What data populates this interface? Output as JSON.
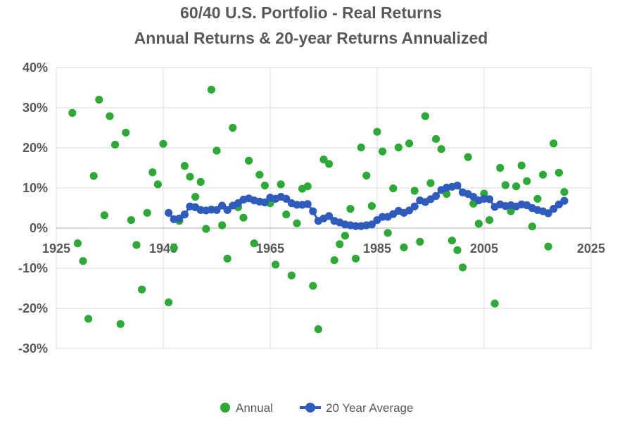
{
  "chart_data": {
    "type": "scatter",
    "title": "60/40 U.S. Portfolio - Real Returns",
    "subtitle": "Annual Returns & 20-year Returns Annualized",
    "xlabel": "",
    "ylabel": "",
    "xlim": [
      1925,
      2025
    ],
    "ylim": [
      -30,
      40
    ],
    "x_ticks": [
      "1925",
      "1945",
      "1965",
      "1985",
      "2005",
      "2025"
    ],
    "y_ticks": [
      "40%",
      "30%",
      "20%",
      "10%",
      "0%",
      "-10%",
      "-20%",
      "-30%"
    ],
    "y_tick_values": [
      40,
      30,
      20,
      10,
      0,
      -10,
      -20,
      -30
    ],
    "x_tick_values": [
      1925,
      1945,
      1965,
      1985,
      2005,
      2025
    ],
    "grid": true,
    "legend_position": "bottom",
    "series": [
      {
        "name": "Annual",
        "color": "#2ea836",
        "marker": "circle",
        "points": [
          [
            1928,
            28.7
          ],
          [
            1929,
            -3.8
          ],
          [
            1930,
            -8.2
          ],
          [
            1931,
            -22.6
          ],
          [
            1932,
            13.0
          ],
          [
            1933,
            32.0
          ],
          [
            1934,
            3.2
          ],
          [
            1935,
            27.9
          ],
          [
            1936,
            20.8
          ],
          [
            1937,
            -23.9
          ],
          [
            1938,
            23.8
          ],
          [
            1939,
            2.0
          ],
          [
            1940,
            -4.2
          ],
          [
            1941,
            -15.3
          ],
          [
            1942,
            3.8
          ],
          [
            1943,
            13.9
          ],
          [
            1944,
            10.9
          ],
          [
            1945,
            21.0
          ],
          [
            1946,
            -18.5
          ],
          [
            1947,
            -4.9
          ],
          [
            1948,
            1.8
          ],
          [
            1949,
            15.5
          ],
          [
            1950,
            12.8
          ],
          [
            1951,
            7.8
          ],
          [
            1952,
            11.5
          ],
          [
            1953,
            -0.2
          ],
          [
            1954,
            34.5
          ],
          [
            1955,
            19.3
          ],
          [
            1956,
            0.7
          ],
          [
            1957,
            -7.6
          ],
          [
            1958,
            25.0
          ],
          [
            1959,
            5.2
          ],
          [
            1960,
            2.6
          ],
          [
            1961,
            16.8
          ],
          [
            1962,
            -3.8
          ],
          [
            1963,
            13.3
          ],
          [
            1964,
            10.6
          ],
          [
            1965,
            6.2
          ],
          [
            1966,
            -9.1
          ],
          [
            1967,
            10.9
          ],
          [
            1968,
            3.4
          ],
          [
            1969,
            -11.8
          ],
          [
            1970,
            1.2
          ],
          [
            1971,
            9.8
          ],
          [
            1972,
            10.4
          ],
          [
            1973,
            -14.4
          ],
          [
            1974,
            -25.2
          ],
          [
            1975,
            17.1
          ],
          [
            1976,
            16.0
          ],
          [
            1977,
            -8.0
          ],
          [
            1978,
            -4.0
          ],
          [
            1979,
            -1.9
          ],
          [
            1980,
            4.8
          ],
          [
            1981,
            -7.6
          ],
          [
            1982,
            20.1
          ],
          [
            1983,
            13.1
          ],
          [
            1984,
            5.5
          ],
          [
            1985,
            24.0
          ],
          [
            1986,
            19.1
          ],
          [
            1987,
            -1.2
          ],
          [
            1988,
            9.9
          ],
          [
            1989,
            20.1
          ],
          [
            1990,
            -4.8
          ],
          [
            1991,
            21.1
          ],
          [
            1992,
            9.3
          ],
          [
            1993,
            -3.4
          ],
          [
            1994,
            27.9
          ],
          [
            1995,
            11.2
          ],
          [
            1996,
            22.2
          ],
          [
            1997,
            19.7
          ],
          [
            1998,
            8.5
          ],
          [
            1999,
            -3.1
          ],
          [
            2000,
            -5.5
          ],
          [
            2001,
            -9.8
          ],
          [
            2002,
            17.7
          ],
          [
            2003,
            6.1
          ],
          [
            2004,
            1.1
          ],
          [
            2005,
            8.6
          ],
          [
            2006,
            2.0
          ],
          [
            2007,
            -18.8
          ],
          [
            2008,
            15.0
          ],
          [
            2009,
            10.7
          ],
          [
            2010,
            4.2
          ],
          [
            2011,
            10.4
          ],
          [
            2012,
            15.6
          ],
          [
            2013,
            11.7
          ],
          [
            2014,
            0.4
          ],
          [
            2015,
            7.3
          ],
          [
            2016,
            13.3
          ],
          [
            2017,
            -4.6
          ],
          [
            2018,
            21.1
          ],
          [
            2019,
            13.8
          ],
          [
            2020,
            9.0
          ]
        ]
      },
      {
        "name": "20 Year Average",
        "color": "#2f5bbd",
        "marker": "circle-line",
        "points": [
          [
            1946,
            3.8
          ],
          [
            1947,
            2.2
          ],
          [
            1948,
            2.4
          ],
          [
            1949,
            3.4
          ],
          [
            1950,
            5.4
          ],
          [
            1951,
            5.2
          ],
          [
            1952,
            4.5
          ],
          [
            1953,
            4.4
          ],
          [
            1954,
            4.6
          ],
          [
            1955,
            4.5
          ],
          [
            1956,
            5.6
          ],
          [
            1957,
            4.5
          ],
          [
            1958,
            5.6
          ],
          [
            1959,
            6.2
          ],
          [
            1960,
            7.1
          ],
          [
            1961,
            7.4
          ],
          [
            1962,
            6.9
          ],
          [
            1963,
            6.6
          ],
          [
            1964,
            6.4
          ],
          [
            1965,
            7.6
          ],
          [
            1966,
            7.3
          ],
          [
            1967,
            7.8
          ],
          [
            1968,
            7.3
          ],
          [
            1969,
            6.2
          ],
          [
            1970,
            5.8
          ],
          [
            1971,
            5.8
          ],
          [
            1972,
            6.0
          ],
          [
            1973,
            4.2
          ],
          [
            1974,
            1.8
          ],
          [
            1975,
            2.4
          ],
          [
            1976,
            3.0
          ],
          [
            1977,
            1.8
          ],
          [
            1978,
            1.4
          ],
          [
            1979,
            0.9
          ],
          [
            1980,
            0.7
          ],
          [
            1981,
            0.5
          ],
          [
            1982,
            0.5
          ],
          [
            1983,
            0.7
          ],
          [
            1984,
            0.9
          ],
          [
            1985,
            2.0
          ],
          [
            1986,
            2.8
          ],
          [
            1987,
            2.8
          ],
          [
            1988,
            3.5
          ],
          [
            1989,
            4.3
          ],
          [
            1990,
            3.8
          ],
          [
            1991,
            4.4
          ],
          [
            1992,
            5.4
          ],
          [
            1993,
            6.9
          ],
          [
            1994,
            6.5
          ],
          [
            1995,
            7.2
          ],
          [
            1996,
            8.0
          ],
          [
            1997,
            9.5
          ],
          [
            1998,
            10.1
          ],
          [
            1999,
            10.3
          ],
          [
            2000,
            10.6
          ],
          [
            2001,
            8.9
          ],
          [
            2002,
            8.5
          ],
          [
            2003,
            7.8
          ],
          [
            2004,
            6.9
          ],
          [
            2005,
            7.3
          ],
          [
            2006,
            7.2
          ],
          [
            2007,
            5.3
          ],
          [
            2008,
            5.9
          ],
          [
            2009,
            5.5
          ],
          [
            2010,
            5.7
          ],
          [
            2011,
            5.4
          ],
          [
            2012,
            5.9
          ],
          [
            2013,
            5.7
          ],
          [
            2014,
            5.0
          ],
          [
            2015,
            4.5
          ],
          [
            2016,
            4.2
          ],
          [
            2017,
            3.7
          ],
          [
            2018,
            4.8
          ],
          [
            2019,
            5.9
          ],
          [
            2020,
            6.8
          ]
        ]
      }
    ]
  }
}
